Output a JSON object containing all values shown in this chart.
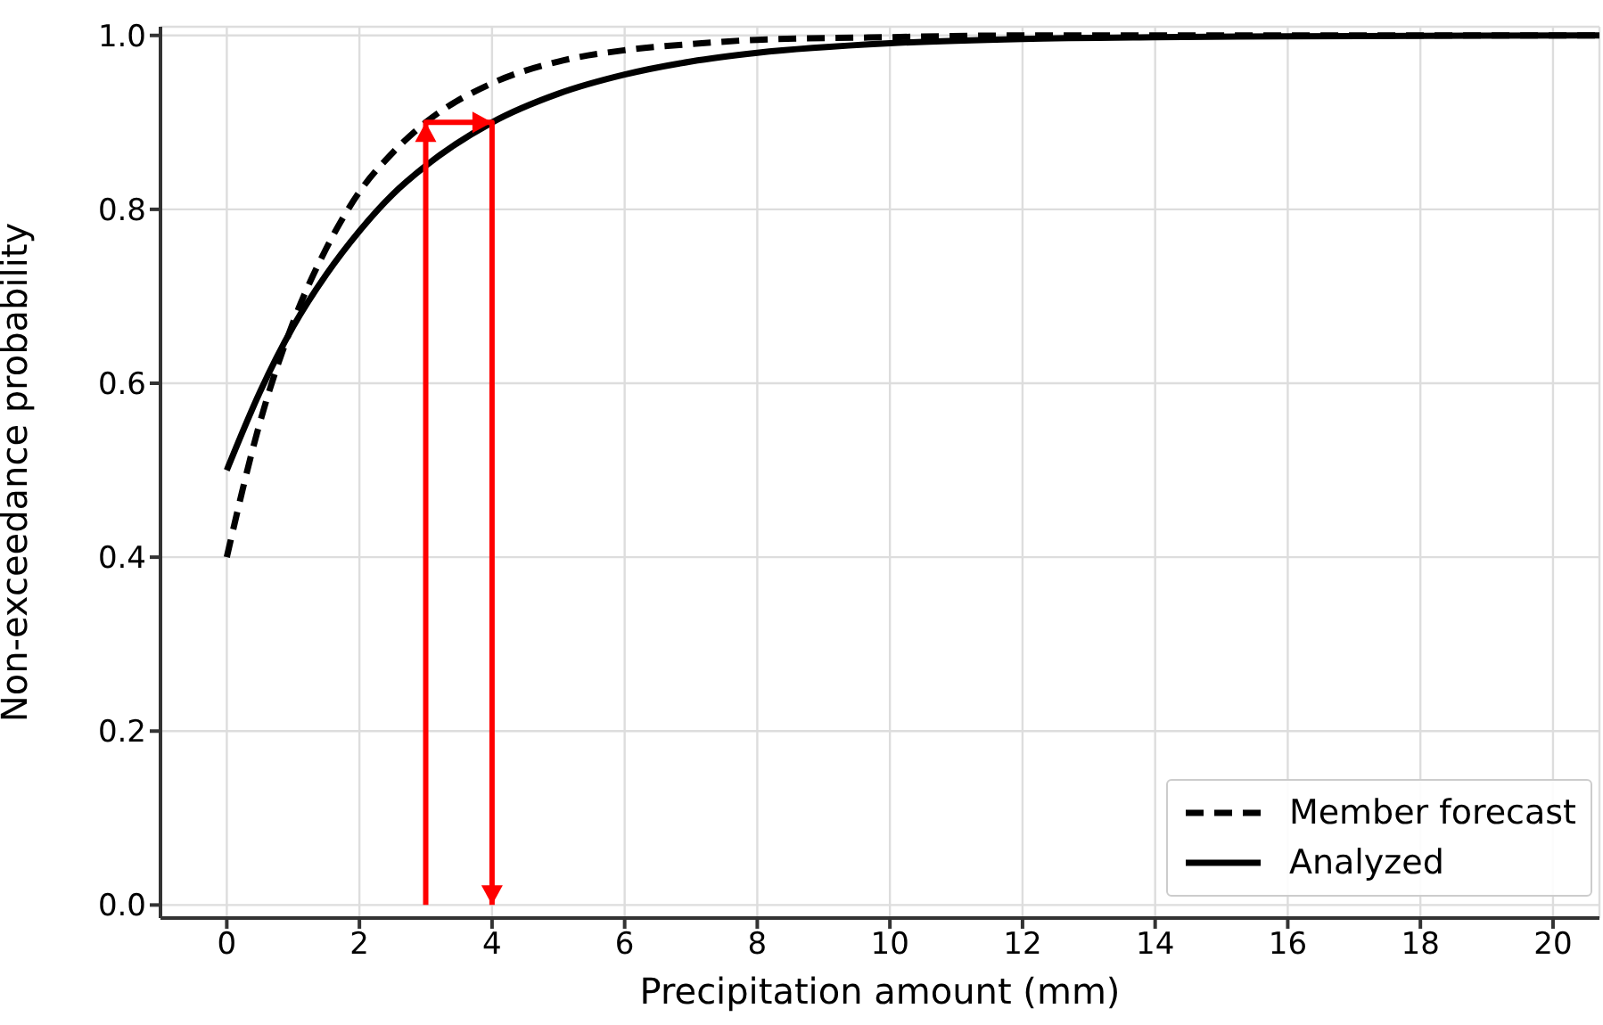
{
  "chart_data": {
    "type": "line",
    "xlabel": "Precipitation amount (mm)",
    "ylabel": "Non-exceedance probability",
    "xlim": [
      -1,
      20.7
    ],
    "xticks": [
      0,
      2,
      4,
      6,
      8,
      10,
      12,
      14,
      16,
      18,
      20
    ],
    "ylim": [
      -0.015,
      1.01
    ],
    "yticks": [
      {
        "value": 0,
        "label": "0.0"
      },
      0.2,
      0.4,
      0.6,
      0.8,
      {
        "value": 1,
        "label": "1.0"
      }
    ],
    "grid": true,
    "legend": "bottom right",
    "marker": "none",
    "series": [
      {
        "name": "Member forecast",
        "color": "#000000",
        "line_style": "dashed",
        "x": [
          0,
          0.5,
          1,
          1.5,
          2,
          2.5,
          3,
          4,
          5,
          6,
          7,
          8,
          10,
          12,
          16,
          20.7
        ],
        "values": [
          0.4,
          0.555,
          0.67,
          0.755,
          0.82,
          0.865,
          0.9,
          0.945,
          0.97,
          0.983,
          0.99,
          0.995,
          0.998,
          1.0,
          1.0,
          1.0
        ]
      },
      {
        "name": "Analyzed",
        "color": "#000000",
        "line_style": "solid",
        "x": [
          0,
          0.5,
          1,
          1.5,
          2,
          2.5,
          3,
          4,
          5,
          6,
          7,
          8,
          10,
          12,
          14,
          16,
          20.7
        ],
        "values": [
          0.5,
          0.59,
          0.665,
          0.725,
          0.775,
          0.817,
          0.85,
          0.9,
          0.933,
          0.955,
          0.97,
          0.98,
          0.991,
          0.996,
          0.998,
          0.999,
          1.0
        ]
      },
      {
        "color": "#ff0000",
        "line_style": "solid",
        "x": [
          3,
          3,
          4,
          4
        ],
        "values": [
          0,
          0.9,
          0.9,
          0
        ]
      }
    ]
  }
}
